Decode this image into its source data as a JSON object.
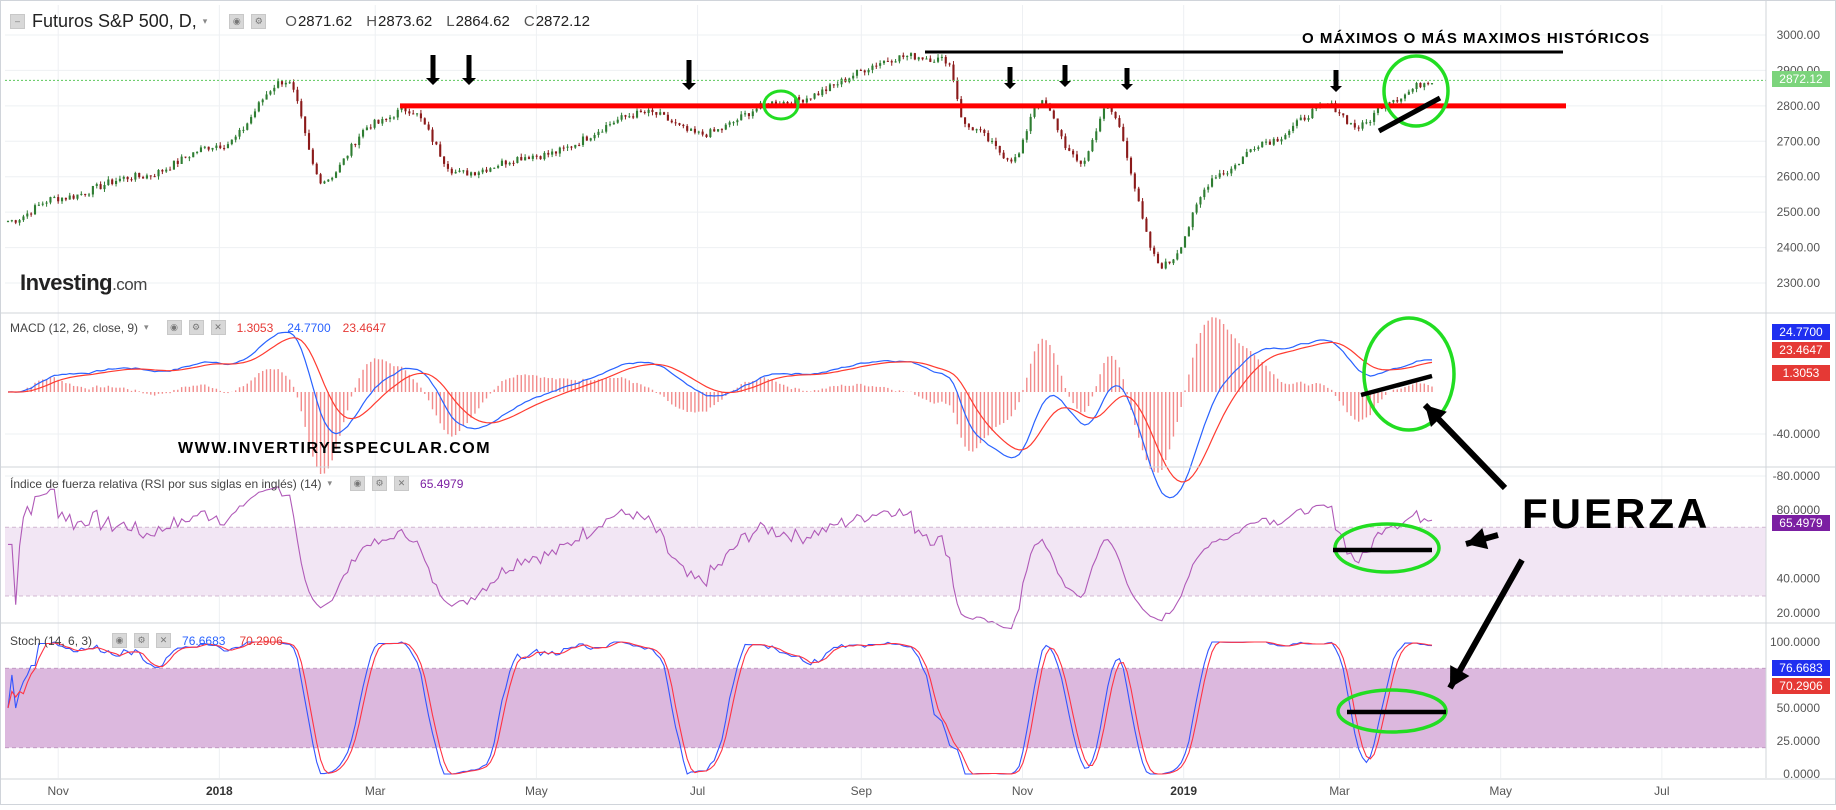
{
  "header": {
    "collapse_icon": "minus-box-icon",
    "symbol": "Futuros S&P 500, D,",
    "dropdown_icon": "chevron-down-icon",
    "open_label": "O",
    "open": "2871.62",
    "high_label": "H",
    "high": "2873.62",
    "low_label": "L",
    "low": "2864.62",
    "close_label": "C",
    "close": "2872.12"
  },
  "logo": {
    "brand": "Investing",
    "suffix": ".com"
  },
  "annotations": {
    "maximos": "O MÁXIMOS O MÁS MAXIMOS HISTÓRICOS",
    "website": "WWW.INVERTIRYESPECULAR.COM",
    "fuerza": "FUERZA"
  },
  "price_axis": {
    "ticks": [
      "3000.00",
      "2900.00",
      "2800.00",
      "2700.00",
      "2600.00",
      "2500.00",
      "2400.00",
      "2300.00"
    ],
    "current_label": "2872.12"
  },
  "macd": {
    "name": "MACD (12, 26, close, 9)",
    "hist": "1.3053",
    "macd": "24.7700",
    "signal": "23.4647",
    "axis_ticks": [
      "-40.0000",
      "-80.0000"
    ]
  },
  "rsi": {
    "name": "Índice de fuerza relativa (RSI por sus siglas en inglés) (14)",
    "value": "65.4979",
    "axis_ticks": [
      "80.0000",
      "40.0000",
      "20.0000"
    ]
  },
  "stoch": {
    "name": "Stoch (14, 6, 3)",
    "k": "76.6683",
    "d": "70.2906",
    "axis_ticks": [
      "100.0000",
      "50.0000",
      "25.0000",
      "0.0000"
    ]
  },
  "time_axis": {
    "labels": [
      "Nov",
      "2018",
      "Mar",
      "May",
      "Jul",
      "Sep",
      "Nov",
      "2019",
      "Mar",
      "May",
      "Jul"
    ]
  },
  "colors": {
    "up": "#2e7d32",
    "down": "#8b1a1a",
    "macd_line": "#2962ff",
    "signal_line": "#ff3b30",
    "rsi_line": "#b05ab8",
    "stoch_k": "#3355ff",
    "stoch_d": "#ff3344",
    "annotation_red": "#ff0000",
    "annotation_green": "#22dd22",
    "rsi_badge": "#7b1fa2"
  },
  "chart_data": {
    "type": "line",
    "title": "Futuros S&P 500, D",
    "x": [
      "2017-10-13",
      "2017-11-01",
      "2017-12-01",
      "2018-01-02",
      "2018-01-26",
      "2018-02-09",
      "2018-03-01",
      "2018-03-13",
      "2018-04-02",
      "2018-05-01",
      "2018-06-12",
      "2018-07-02",
      "2018-08-01",
      "2018-09-20",
      "2018-10-03",
      "2018-10-11",
      "2018-10-29",
      "2018-11-07",
      "2018-11-23",
      "2018-12-03",
      "2018-12-24",
      "2019-01-15",
      "2019-02-01",
      "2019-02-25",
      "2019-03-08",
      "2019-03-21",
      "2019-04-05"
    ],
    "series": [
      {
        "values": [
          2475,
          2540,
          2600,
          2690,
          2870,
          2590,
          2750,
          2790,
          2610,
          2660,
          2780,
          2720,
          2810,
          2940,
          2930,
          2740,
          2650,
          2810,
          2640,
          2790,
          2350,
          2610,
          2700,
          2800,
          2740,
          2820,
          2872
        ]
      }
    ],
    "ylim": [
      2300,
      3000
    ],
    "annotations": {
      "resistance_level": 2800
    }
  }
}
